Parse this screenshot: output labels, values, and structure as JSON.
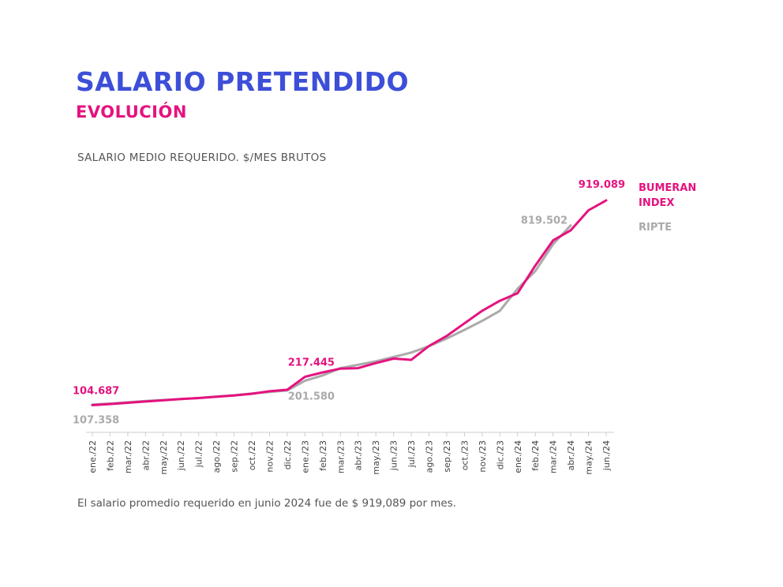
{
  "header": {
    "title": "SALARIO PRETENDIDO",
    "subtitle": "EVOLUCIÓN"
  },
  "footnote": "El salario promedio requerido en junio 2024 fue de $ 919,089 por mes.",
  "colors": {
    "title": "#3d4fd8",
    "bumeran": "#e5127f",
    "ripte": "#aaaaaa",
    "text": "#555555"
  },
  "chart_data": {
    "type": "line",
    "title": "SALARIO MEDIO REQUERIDO. $/MES BRUTOS",
    "categories": [
      "ene./22",
      "feb./22",
      "mar./22",
      "abr./22",
      "may./22",
      "jun./22",
      "jul./22",
      "ago./22",
      "sep./22",
      "oct./22",
      "nov./22",
      "dic./22",
      "ene./23",
      "feb./23",
      "mar./23",
      "abr./23",
      "may./23",
      "jun./23",
      "jul./23",
      "ago./23",
      "sep./23",
      "oct./23",
      "nov./23",
      "dic./23",
      "ene./24",
      "feb./24",
      "mar./24",
      "abr./24",
      "may./24",
      "jun./24"
    ],
    "series": [
      {
        "name": "BUMERAN INDEX",
        "color": "#e5127f",
        "values": [
          104687,
          109000,
          114000,
          119000,
          124000,
          129000,
          133000,
          138000,
          143000,
          150000,
          160000,
          166000,
          217445,
          235000,
          250000,
          252000,
          272000,
          290000,
          285000,
          340000,
          380000,
          430000,
          480000,
          520000,
          550000,
          660000,
          760000,
          800000,
          880000,
          919089
        ]
      },
      {
        "name": "RIPTE",
        "color": "#aaaaaa",
        "values": [
          107358,
          111000,
          116000,
          121000,
          125000,
          129000,
          133000,
          139000,
          144000,
          151000,
          157000,
          163000,
          201580,
          223000,
          252000,
          265000,
          279000,
          296000,
          314000,
          339000,
          370000,
          404000,
          440000,
          480000,
          568000,
          638000,
          745000,
          819502,
          null,
          null
        ]
      }
    ],
    "annotations": [
      {
        "label": "104.687",
        "series": 0,
        "index": 0,
        "pos": "above"
      },
      {
        "label": "107.358",
        "series": 1,
        "index": 0,
        "pos": "below"
      },
      {
        "label": "217.445",
        "series": 0,
        "index": 12,
        "pos": "above"
      },
      {
        "label": "201.580",
        "series": 1,
        "index": 12,
        "pos": "below"
      },
      {
        "label": "819.502",
        "series": 1,
        "index": 27,
        "pos": "left"
      },
      {
        "label": "919.089",
        "series": 0,
        "index": 29,
        "pos": "above"
      }
    ],
    "legend": [
      "BUMERAN",
      "INDEX",
      "RIPTE"
    ],
    "legend_position": "right",
    "ylim": [
      0,
      1000000
    ],
    "grid": false
  }
}
